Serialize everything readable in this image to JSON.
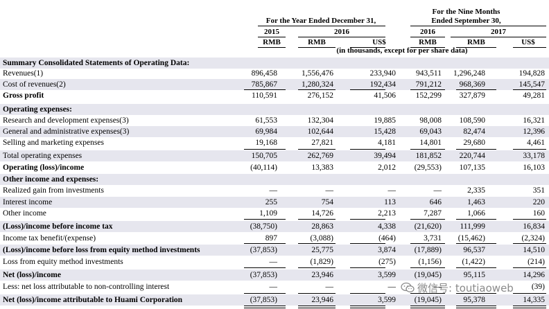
{
  "header": {
    "nine_months_line1": "For the Nine Months",
    "nine_months_line2": "Ended September 30,",
    "year_ended": "For the Year Ended December 31,",
    "years": [
      "2015",
      "2016",
      "2016",
      "2017"
    ],
    "currencies": [
      "RMB",
      "RMB",
      "US$",
      "RMB",
      "RMB",
      "US$"
    ],
    "units_note": "(in thousands, except for per share data)"
  },
  "rows": [
    {
      "label": "Summary Consolidated Statements of Operating Data:",
      "values": [
        "",
        "",
        "",
        "",
        "",
        ""
      ]
    },
    {
      "label": "Revenues(1)",
      "values": [
        "896,458",
        "1,556,476",
        "233,940",
        "943,511",
        "1,296,248",
        "194,828"
      ]
    },
    {
      "label": "Cost of revenues(2)",
      "values": [
        "785,867",
        "1,280,324",
        "192,434",
        "791,212",
        "968,369",
        "145,547"
      ]
    },
    {
      "label": "Gross profit",
      "values": [
        "110,591",
        "276,152",
        "41,506",
        "152,299",
        "327,879",
        "49,281"
      ]
    },
    {
      "label": "Operating expenses:",
      "values": [
        "",
        "",
        "",
        "",
        "",
        ""
      ]
    },
    {
      "label": "Research and development expenses(3)",
      "values": [
        "61,553",
        "132,304",
        "19,885",
        "98,008",
        "108,590",
        "16,321"
      ]
    },
    {
      "label": "General and administrative expenses(3)",
      "values": [
        "69,984",
        "102,644",
        "15,428",
        "69,043",
        "82,474",
        "12,396"
      ]
    },
    {
      "label": "Selling and marketing expenses",
      "values": [
        "19,168",
        "27,821",
        "4,181",
        "14,801",
        "29,680",
        "4,461"
      ]
    },
    {
      "label": "Total operating expenses",
      "values": [
        "150,705",
        "262,769",
        "39,494",
        "181,852",
        "220,744",
        "33,178"
      ]
    },
    {
      "label": "Operating (loss)/income",
      "values": [
        "(40,114)",
        "13,383",
        "2,012",
        "(29,553)",
        "107,135",
        "16,103"
      ]
    },
    {
      "label": "Other income and expenses:",
      "values": [
        "",
        "",
        "",
        "",
        "",
        ""
      ]
    },
    {
      "label": "Realized gain from investments",
      "values": [
        "—",
        "—",
        "—",
        "—",
        "2,335",
        "351"
      ]
    },
    {
      "label": "Interest income",
      "values": [
        "255",
        "754",
        "113",
        "646",
        "1,463",
        "220"
      ]
    },
    {
      "label": "Other income",
      "values": [
        "1,109",
        "14,726",
        "2,213",
        "7,287",
        "1,066",
        "160"
      ]
    },
    {
      "label": "(Loss)/income before income tax",
      "values": [
        "(38,750)",
        "28,863",
        "4,338",
        "(21,620)",
        "111,999",
        "16,834"
      ]
    },
    {
      "label": "Income tax benefit/(expense)",
      "values": [
        "897",
        "(3,088)",
        "(464)",
        "3,731",
        "(15,462)",
        "(2,324)"
      ]
    },
    {
      "label": "(Loss)/income before loss from equity method investments",
      "values": [
        "(37,853)",
        "25,775",
        "3,874",
        "(17,889)",
        "96,537",
        "14,510"
      ]
    },
    {
      "label": "Loss from equity method investments",
      "values": [
        "—",
        "(1,829)",
        "(275)",
        "(1,156)",
        "(1,422)",
        "(214)"
      ]
    },
    {
      "label": "Net (loss)/income",
      "values": [
        "(37,853)",
        "23,946",
        "3,599",
        "(19,045)",
        "95,115",
        "14,296"
      ]
    },
    {
      "label": "Less: net loss attributable to non-controlling interest",
      "values": [
        "—",
        "—",
        "—",
        "—",
        "",
        "(39)"
      ]
    },
    {
      "label": "Net (loss)/income attributable to Huami Corporation",
      "values": [
        "(37,853)",
        "23,946",
        "3,599",
        "(19,045)",
        "95,378",
        "14,335"
      ]
    }
  ],
  "watermark": {
    "text": "微信号: toutiaoweb",
    "icon": "wechat-icon"
  }
}
